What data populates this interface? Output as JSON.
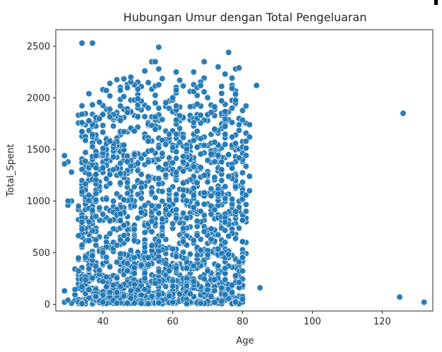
{
  "chart_data": {
    "type": "scatter",
    "title": "Hubungan Umur dengan Total Pengeluaran",
    "xlabel": "Age",
    "ylabel": "Total_Spent",
    "xlim": [
      26.5,
      134.5
    ],
    "ylim": [
      -65,
      2660
    ],
    "xticks": [
      40,
      60,
      80,
      100,
      120
    ],
    "yticks": [
      0,
      500,
      1000,
      1500,
      2000,
      2500
    ],
    "grid": false,
    "color": "#1f77b4",
    "clusters": [
      {
        "x": [
          32,
          80
        ],
        "y": [
          5,
          450
        ],
        "n": 700,
        "seed": 11
      },
      {
        "x": [
          33,
          81
        ],
        "y": [
          450,
          1000
        ],
        "n": 430,
        "seed": 23
      },
      {
        "x": [
          33,
          81
        ],
        "y": [
          1000,
          1500
        ],
        "n": 360,
        "seed": 37
      },
      {
        "x": [
          33,
          81
        ],
        "y": [
          1500,
          1950
        ],
        "n": 250,
        "seed": 53
      },
      {
        "x": [
          36,
          79
        ],
        "y": [
          1950,
          2200
        ],
        "n": 60,
        "seed": 71
      }
    ],
    "points": [
      [
        34,
        2530
      ],
      [
        37,
        2530
      ],
      [
        56,
        2490
      ],
      [
        76,
        2440
      ],
      [
        54,
        2350
      ],
      [
        55,
        2350
      ],
      [
        69,
        2350
      ],
      [
        52,
        2260
      ],
      [
        73,
        2300
      ],
      [
        75,
        2230
      ],
      [
        78,
        2280
      ],
      [
        79,
        2290
      ],
      [
        56,
        2280
      ],
      [
        48,
        2200
      ],
      [
        61,
        2250
      ],
      [
        84,
        2120
      ],
      [
        66,
        2250
      ],
      [
        62,
        2170
      ],
      [
        29,
        1440
      ],
      [
        30,
        1380
      ],
      [
        29,
        1360
      ],
      [
        31,
        1280
      ],
      [
        30,
        960
      ],
      [
        31,
        1000
      ],
      [
        30,
        1000
      ],
      [
        29,
        130
      ],
      [
        29,
        20
      ],
      [
        31,
        10
      ],
      [
        30,
        40
      ],
      [
        85,
        160
      ],
      [
        82,
        1740
      ],
      [
        82,
        1620
      ],
      [
        81,
        1580
      ],
      [
        82,
        1240
      ],
      [
        82,
        1100
      ],
      [
        81,
        900
      ],
      [
        126,
        1850
      ],
      [
        125,
        70
      ],
      [
        132,
        20
      ]
    ]
  }
}
